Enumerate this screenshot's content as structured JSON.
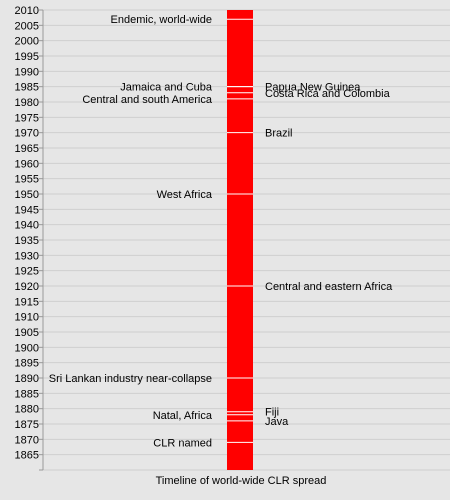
{
  "chart_data": {
    "type": "bar",
    "title": "",
    "xlabel": "Timeline of world-wide CLR spread",
    "ylabel": "",
    "ylim": [
      1860,
      2010
    ],
    "tick_step": 5,
    "grid": true,
    "bar": {
      "from": 1860,
      "to": 2010,
      "color": "#ff0000"
    },
    "events": [
      {
        "year": 1869,
        "label": "CLR named",
        "side": "left"
      },
      {
        "year": 1878,
        "label": "Natal, Africa",
        "side": "left"
      },
      {
        "year": 1879,
        "label": "Fiji",
        "side": "right"
      },
      {
        "year": 1876,
        "label": "Java",
        "side": "right"
      },
      {
        "year": 1890,
        "label": "Sri Lankan industry near-collapse",
        "side": "left"
      },
      {
        "year": 1920,
        "label": "Central and eastern Africa",
        "side": "right"
      },
      {
        "year": 1950,
        "label": "West Africa",
        "side": "left"
      },
      {
        "year": 1970,
        "label": "Brazil",
        "side": "right"
      },
      {
        "year": 1981,
        "label": "Central and south America",
        "side": "left"
      },
      {
        "year": 1985,
        "label": "Jamaica and Cuba",
        "side": "left"
      },
      {
        "year": 1985,
        "label": "Papua New Guinea",
        "side": "right"
      },
      {
        "year": 1983,
        "label": "Costa Rica and Colombia",
        "side": "right"
      },
      {
        "year": 2007,
        "label": "Endemic, world-wide",
        "side": "left"
      }
    ]
  }
}
